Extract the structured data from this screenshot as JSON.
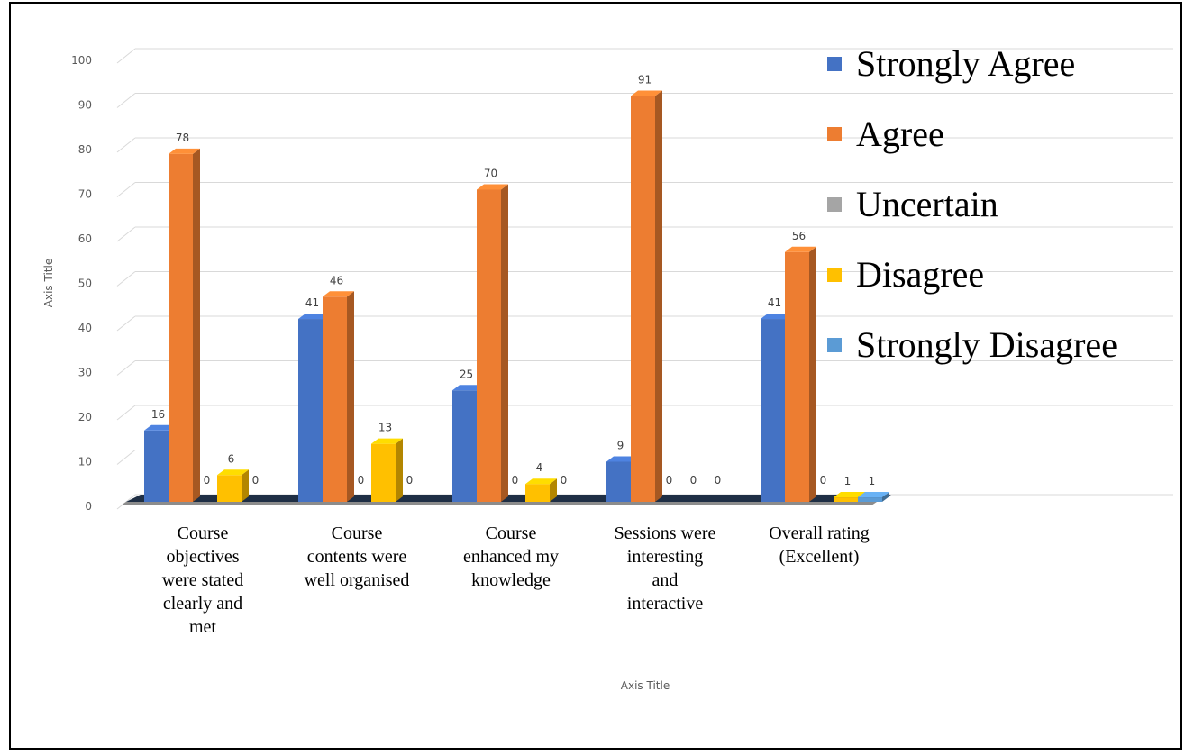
{
  "chart_data": {
    "type": "bar",
    "categories": [
      "Course objectives were stated clearly and met",
      "Course contents were well organised",
      "Course enhanced my knowledge",
      "Sessions were interesting and interactive",
      "Overall rating (Excellent)"
    ],
    "category_lines": [
      [
        "Course",
        "objectives",
        "were stated",
        "clearly and",
        "met"
      ],
      [
        "Course",
        "contents were",
        "well organised"
      ],
      [
        "Course",
        "enhanced my",
        "knowledge"
      ],
      [
        "Sessions were",
        "interesting",
        "and",
        "interactive"
      ],
      [
        "Overall rating",
        "(Excellent)"
      ]
    ],
    "series": [
      {
        "name": "Strongly Agree",
        "color": "#4472C4",
        "values": [
          16,
          41,
          25,
          9,
          41
        ]
      },
      {
        "name": "Agree",
        "color": "#ED7D31",
        "values": [
          78,
          46,
          70,
          91,
          56
        ]
      },
      {
        "name": "Uncertain",
        "color": "#A5A5A5",
        "values": [
          0,
          0,
          0,
          0,
          0
        ]
      },
      {
        "name": "Disagree",
        "color": "#FFC000",
        "values": [
          6,
          13,
          4,
          0,
          1
        ]
      },
      {
        "name": "Strongly Disagree",
        "color": "#5B9BD5",
        "values": [
          0,
          0,
          0,
          0,
          1
        ]
      }
    ],
    "ylim": [
      0,
      100
    ],
    "yticks": [
      0,
      10,
      20,
      30,
      40,
      50,
      60,
      70,
      80,
      90,
      100
    ],
    "xlabel": "Axis Title",
    "ylabel": "Axis Title",
    "grid": true,
    "legend_position": "top-right",
    "style": "3d-clustered-column"
  }
}
